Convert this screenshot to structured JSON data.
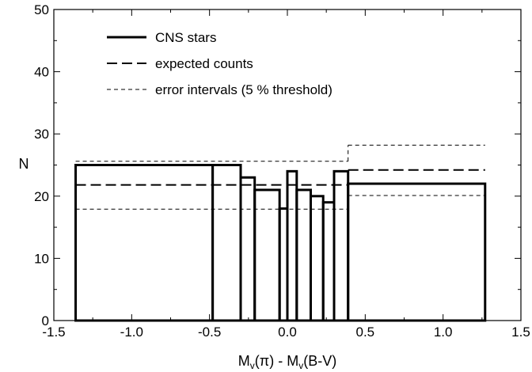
{
  "chart_data": {
    "type": "histogram",
    "title": "",
    "xlabel": "M_v(π) - M_v(B-V)",
    "xlabel_parts": {
      "a": "M",
      "a_sub": "v",
      "b": "(π) - M",
      "b_sub": "v",
      "c": "(B-V)"
    },
    "ylabel": "N",
    "xlim": [
      -1.5,
      1.5
    ],
    "ylim": [
      0,
      50
    ],
    "xticks": [
      -1.5,
      -1.0,
      -0.5,
      0.0,
      0.5,
      1.0,
      1.5
    ],
    "xtick_labels": [
      "-1.5",
      "-1.0",
      "-0.5",
      "0.0",
      "0.5",
      "1.0",
      "1.5"
    ],
    "yticks": [
      0,
      10,
      20,
      30,
      40,
      50
    ],
    "ytick_labels": [
      "0",
      "10",
      "20",
      "30",
      "40",
      "50"
    ],
    "grid": false,
    "legend_placement": "top-left",
    "series": [
      {
        "name": "CNS stars",
        "style": "thick-solid",
        "bins": [
          {
            "x0": -1.36,
            "x1": -0.48,
            "y": 25
          },
          {
            "x0": -0.48,
            "x1": -0.3,
            "y": 25
          },
          {
            "x0": -0.3,
            "x1": -0.21,
            "y": 23
          },
          {
            "x0": -0.21,
            "x1": -0.05,
            "y": 21
          },
          {
            "x0": -0.05,
            "x1": 0.0,
            "y": 18
          },
          {
            "x0": 0.0,
            "x1": 0.06,
            "y": 24
          },
          {
            "x0": 0.06,
            "x1": 0.15,
            "y": 21
          },
          {
            "x0": 0.15,
            "x1": 0.23,
            "y": 20
          },
          {
            "x0": 0.23,
            "x1": 0.3,
            "y": 19
          },
          {
            "x0": 0.3,
            "x1": 0.39,
            "y": 24
          },
          {
            "x0": 0.39,
            "x1": 1.27,
            "y": 22
          }
        ]
      },
      {
        "name": "expected counts",
        "style": "long-dash",
        "segments": [
          {
            "x0": -1.36,
            "x1": 0.39,
            "y": 21.8
          },
          {
            "x0": 0.39,
            "x1": 1.27,
            "y": 24.2
          }
        ]
      },
      {
        "name": "error intervals (5 % threshold)",
        "style": "short-dash",
        "segments": [
          {
            "x0": -1.36,
            "x1": 0.39,
            "y": 25.6
          },
          {
            "x0": -1.36,
            "x1": 0.39,
            "y": 17.9
          },
          {
            "x0": 0.39,
            "x1": 1.27,
            "y": 28.2
          },
          {
            "x0": 0.39,
            "x1": 1.27,
            "y": 20.1
          }
        ],
        "step": {
          "x": 0.39,
          "y0": 25.6,
          "y1": 28.2
        }
      }
    ]
  }
}
